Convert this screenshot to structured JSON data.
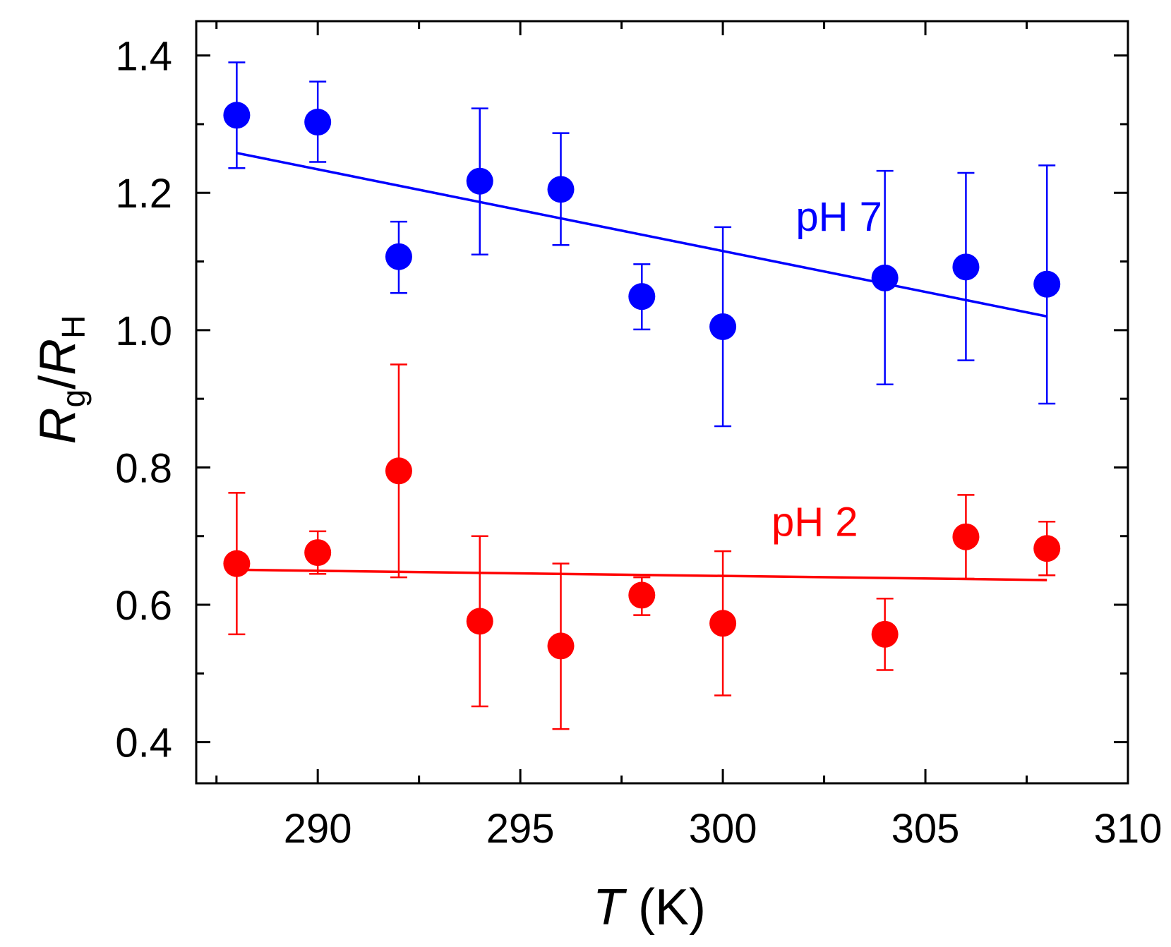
{
  "chart_data": {
    "type": "scatter",
    "xlabel": "T (K)",
    "xlabel_var": "T",
    "xlabel_unit": " (K)",
    "ylabel": "Rg/RH",
    "ylabel_main": "R",
    "ylabel_sub1": "g",
    "ylabel_slash": "/",
    "ylabel_sub2": "H",
    "xlim": [
      287,
      310
    ],
    "ylim": [
      0.34,
      1.45
    ],
    "xticks": [
      290,
      295,
      300,
      305,
      310
    ],
    "xticks_minor": [
      287.5,
      292.5,
      297.5,
      302.5,
      307.5
    ],
    "yticks": [
      0.4,
      0.6,
      0.8,
      1.0,
      1.2,
      1.4
    ],
    "yticks_minor": [
      0.5,
      0.7,
      0.9,
      1.1,
      1.3
    ],
    "ytick_labels": [
      "0.4",
      "0.6",
      "0.8",
      "1.0",
      "1.2",
      "1.4"
    ],
    "series": [
      {
        "name": "pH 7",
        "color": "#0000ff",
        "x": [
          288,
          290,
          292,
          294,
          296,
          298,
          300,
          304,
          306,
          308
        ],
        "y": [
          1.313,
          1.303,
          1.107,
          1.217,
          1.205,
          1.049,
          1.005,
          1.076,
          1.092,
          1.067
        ],
        "err_upper": [
          1.39,
          1.362,
          1.158,
          1.323,
          1.287,
          1.096,
          1.15,
          1.232,
          1.229,
          1.24
        ],
        "err_lower": [
          1.236,
          1.245,
          1.054,
          1.11,
          1.124,
          1.001,
          0.86,
          0.921,
          0.956,
          0.893
        ],
        "fit": {
          "x": [
            288,
            308
          ],
          "y": [
            1.258,
            1.02
          ]
        },
        "label_pos": {
          "x": 301.8,
          "y": 1.145
        }
      },
      {
        "name": "pH 2",
        "color": "#ff0000",
        "x": [
          288,
          290,
          292,
          294,
          296,
          298,
          300,
          304,
          306,
          308
        ],
        "y": [
          0.66,
          0.676,
          0.795,
          0.576,
          0.54,
          0.614,
          0.573,
          0.557,
          0.699,
          0.682
        ],
        "err_upper": [
          0.763,
          0.707,
          0.95,
          0.7,
          0.66,
          0.64,
          0.678,
          0.609,
          0.76,
          0.721
        ],
        "err_lower": [
          0.557,
          0.645,
          0.64,
          0.452,
          0.419,
          0.585,
          0.468,
          0.505,
          0.638,
          0.643
        ],
        "fit": {
          "x": [
            288,
            308
          ],
          "y": [
            0.651,
            0.636
          ]
        },
        "label_pos": {
          "x": 301.2,
          "y": 0.7
        }
      }
    ]
  }
}
